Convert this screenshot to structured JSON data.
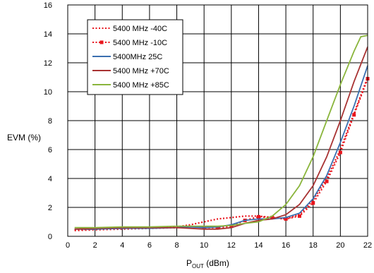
{
  "chart_data": {
    "type": "line",
    "xlabel_main": "P",
    "xlabel_sub": "OUT",
    "xlabel_unit": " (dBm)",
    "ylabel": "EVM (%)",
    "xlim": [
      0,
      22
    ],
    "ylim": [
      0,
      16
    ],
    "xticks": [
      "0",
      "2",
      "4",
      "6",
      "8",
      "10",
      "12",
      "14",
      "16",
      "18",
      "20",
      "22"
    ],
    "yticks": [
      "0",
      "2",
      "4",
      "6",
      "8",
      "10",
      "12",
      "14",
      "16"
    ],
    "grid": true,
    "legend_position": "top-left",
    "series": [
      {
        "name": "5400 MHz -40C",
        "color": "#e8141c",
        "style": "dotted",
        "x": [
          0.5,
          2,
          4,
          6,
          8,
          9,
          10,
          11,
          12,
          13,
          14,
          15,
          16,
          17,
          18,
          19,
          20,
          21,
          22
        ],
        "y": [
          0.45,
          0.5,
          0.55,
          0.6,
          0.65,
          0.8,
          1.0,
          1.2,
          1.3,
          1.4,
          1.4,
          1.3,
          1.2,
          1.5,
          2.5,
          4.0,
          6.0,
          8.5,
          11.0
        ]
      },
      {
        "name": "5400 MHz -10C",
        "color": "#e8141c",
        "style": "dotted-square",
        "x": [
          0.5,
          2,
          4,
          6,
          8,
          9,
          10,
          11,
          12,
          13,
          14,
          15,
          16,
          17,
          18,
          19,
          20,
          21,
          22
        ],
        "y": [
          0.4,
          0.45,
          0.5,
          0.55,
          0.6,
          0.7,
          0.6,
          0.6,
          0.7,
          1.1,
          1.35,
          1.3,
          1.2,
          1.4,
          2.3,
          3.8,
          5.8,
          8.4,
          10.9
        ]
      },
      {
        "name": "5400MHz 25C",
        "color": "#3a6fb0",
        "style": "solid",
        "x": [
          0.5,
          2,
          4,
          6,
          8,
          9,
          10,
          11,
          12,
          13,
          14,
          15,
          16,
          17,
          18,
          19,
          20,
          21,
          22
        ],
        "y": [
          0.5,
          0.5,
          0.55,
          0.55,
          0.6,
          0.65,
          0.6,
          0.65,
          0.8,
          1.1,
          1.2,
          1.2,
          1.3,
          1.6,
          2.6,
          4.2,
          6.5,
          9.0,
          11.8
        ]
      },
      {
        "name": "5400 MHz +70C",
        "color": "#a83232",
        "style": "solid",
        "x": [
          0.5,
          2,
          4,
          6,
          8,
          9,
          10,
          11,
          12,
          13,
          14,
          15,
          16,
          17,
          18,
          19,
          20,
          21,
          22
        ],
        "y": [
          0.5,
          0.55,
          0.6,
          0.6,
          0.6,
          0.55,
          0.5,
          0.5,
          0.6,
          0.9,
          1.1,
          1.2,
          1.5,
          2.2,
          3.5,
          5.5,
          8.0,
          10.7,
          13.1
        ]
      },
      {
        "name": "5400 MHz +85C",
        "color": "#8ab53c",
        "style": "solid",
        "x": [
          0.5,
          2,
          4,
          6,
          8,
          9,
          10,
          11,
          12,
          13,
          14,
          15,
          16,
          17,
          18,
          19,
          20,
          21,
          21.5,
          22
        ],
        "y": [
          0.6,
          0.6,
          0.65,
          0.65,
          0.7,
          0.7,
          0.7,
          0.7,
          0.75,
          0.9,
          1.0,
          1.4,
          2.2,
          3.5,
          5.5,
          8.0,
          10.5,
          12.8,
          13.8,
          13.9
        ]
      }
    ]
  }
}
